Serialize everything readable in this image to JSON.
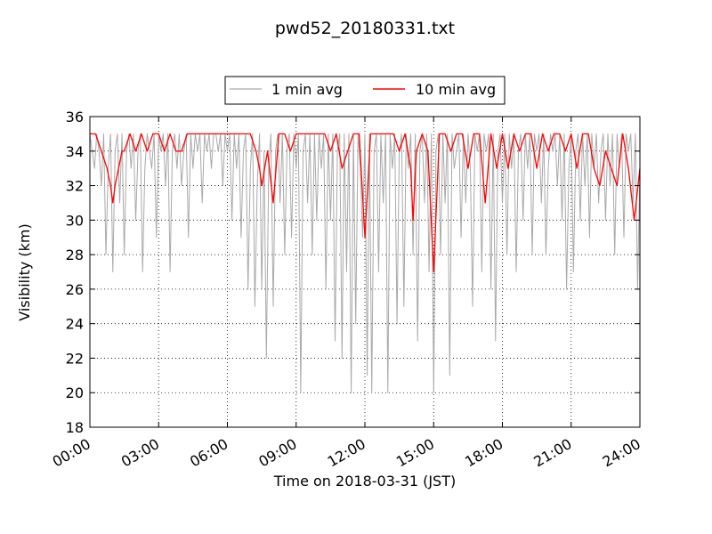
{
  "chart_data": {
    "type": "line",
    "title": "pwd52_20180331.txt",
    "xlabel": "Time on 2018-03-31 (JST)",
    "ylabel": "Visibility (km)",
    "xlim": [
      0,
      24
    ],
    "ylim": [
      18,
      36
    ],
    "x_tick_labels": [
      "00:00",
      "03:00",
      "06:00",
      "09:00",
      "12:00",
      "15:00",
      "18:00",
      "21:00",
      "24:00"
    ],
    "y_tick_labels": [
      "18",
      "20",
      "22",
      "24",
      "26",
      "28",
      "30",
      "32",
      "34",
      "36"
    ],
    "grid": true,
    "legend_position": "top-center",
    "series": [
      {
        "name": "1 min avg",
        "color": "#a9a9a9",
        "x": [
          0.0,
          0.1,
          0.2,
          0.3,
          0.4,
          0.5,
          0.6,
          0.7,
          0.8,
          0.9,
          1.0,
          1.1,
          1.2,
          1.3,
          1.4,
          1.5,
          1.6,
          1.7,
          1.8,
          1.9,
          2.0,
          2.1,
          2.2,
          2.3,
          2.4,
          2.5,
          2.6,
          2.7,
          2.8,
          2.9,
          3.0,
          3.1,
          3.2,
          3.3,
          3.4,
          3.5,
          3.6,
          3.7,
          3.8,
          3.9,
          4.0,
          4.1,
          4.2,
          4.3,
          4.4,
          4.5,
          4.6,
          4.7,
          4.8,
          4.9,
          5.0,
          5.1,
          5.2,
          5.3,
          5.4,
          5.5,
          5.6,
          5.7,
          5.8,
          5.9,
          6.0,
          6.1,
          6.2,
          6.3,
          6.4,
          6.5,
          6.6,
          6.7,
          6.8,
          6.9,
          7.0,
          7.1,
          7.2,
          7.3,
          7.4,
          7.5,
          7.6,
          7.7,
          7.8,
          7.9,
          8.0,
          8.1,
          8.2,
          8.3,
          8.4,
          8.5,
          8.6,
          8.7,
          8.8,
          8.9,
          9.0,
          9.1,
          9.2,
          9.3,
          9.4,
          9.5,
          9.6,
          9.7,
          9.8,
          9.9,
          10.0,
          10.1,
          10.2,
          10.3,
          10.4,
          10.5,
          10.6,
          10.7,
          10.8,
          10.9,
          11.0,
          11.1,
          11.2,
          11.3,
          11.4,
          11.5,
          11.6,
          11.7,
          11.8,
          11.9,
          12.0,
          12.1,
          12.2,
          12.3,
          12.4,
          12.5,
          12.6,
          12.7,
          12.8,
          12.9,
          13.0,
          13.1,
          13.2,
          13.3,
          13.4,
          13.5,
          13.6,
          13.7,
          13.8,
          13.9,
          14.0,
          14.1,
          14.2,
          14.3,
          14.4,
          14.5,
          14.6,
          14.7,
          14.8,
          14.9,
          15.0,
          15.1,
          15.2,
          15.3,
          15.4,
          15.5,
          15.6,
          15.7,
          15.8,
          15.9,
          16.0,
          16.1,
          16.2,
          16.3,
          16.4,
          16.5,
          16.6,
          16.7,
          16.8,
          16.9,
          17.0,
          17.1,
          17.2,
          17.3,
          17.4,
          17.5,
          17.6,
          17.7,
          17.8,
          17.9,
          18.0,
          18.1,
          18.2,
          18.3,
          18.4,
          18.5,
          18.6,
          18.7,
          18.8,
          18.9,
          19.0,
          19.1,
          19.2,
          19.3,
          19.4,
          19.5,
          19.6,
          19.7,
          19.8,
          19.9,
          20.0,
          20.1,
          20.2,
          20.3,
          20.4,
          20.5,
          20.6,
          20.7,
          20.8,
          20.9,
          21.0,
          21.1,
          21.2,
          21.3,
          21.4,
          21.5,
          21.6,
          21.7,
          21.8,
          21.9,
          22.0,
          22.1,
          22.2,
          22.3,
          22.4,
          22.5,
          22.6,
          22.7,
          22.8,
          22.9,
          23.0,
          23.1,
          23.2,
          23.3,
          23.4,
          23.5,
          23.6,
          23.7,
          23.8,
          23.9,
          24.0
        ],
        "values": [
          35,
          34,
          33,
          35,
          34,
          32,
          35,
          28,
          33,
          35,
          27,
          34,
          35,
          31,
          35,
          28,
          34,
          35,
          33,
          35,
          30,
          34,
          35,
          27,
          33,
          35,
          34,
          33,
          35,
          29,
          35,
          34,
          35,
          32,
          35,
          27,
          34,
          35,
          33,
          35,
          32,
          34,
          35,
          29,
          35,
          33,
          35,
          34,
          35,
          31,
          35,
          34,
          35,
          33,
          35,
          35,
          34,
          35,
          32,
          35,
          34,
          35,
          30,
          35,
          33,
          35,
          29,
          34,
          35,
          26,
          33,
          35,
          25,
          32,
          35,
          26,
          34,
          22,
          33,
          35,
          25,
          34,
          35,
          31,
          35,
          28,
          34,
          35,
          29,
          35,
          33,
          35,
          20,
          34,
          35,
          31,
          35,
          28,
          35,
          30,
          35,
          33,
          35,
          26,
          35,
          30,
          35,
          23,
          34,
          35,
          22,
          35,
          27,
          35,
          20,
          35,
          24,
          35,
          33,
          29,
          35,
          21,
          35,
          20,
          34,
          35,
          27,
          35,
          31,
          35,
          20,
          35,
          33,
          35,
          24,
          34,
          35,
          25,
          35,
          33,
          35,
          28,
          35,
          23,
          34,
          35,
          31,
          35,
          27,
          35,
          20,
          34,
          35,
          28,
          35,
          31,
          35,
          21,
          35,
          33,
          34,
          35,
          29,
          35,
          31,
          35,
          33,
          25,
          35,
          34,
          35,
          27,
          35,
          34,
          35,
          26,
          35,
          23,
          34,
          35,
          31,
          35,
          28,
          35,
          33,
          35,
          27,
          34,
          35,
          30,
          35,
          33,
          35,
          28,
          35,
          34,
          35,
          31,
          35,
          28,
          33,
          35,
          34,
          35,
          32,
          35,
          30,
          35,
          26,
          33,
          35,
          27,
          34,
          35,
          30,
          35,
          32,
          35,
          29,
          35,
          33,
          35,
          31,
          34,
          35,
          30,
          35,
          32,
          35,
          28,
          35,
          33,
          35,
          29,
          35,
          34,
          35,
          31,
          35,
          26,
          33
        ]
      },
      {
        "name": "10 min avg",
        "color": "#ff0000",
        "x": [
          0.0,
          0.25,
          0.5,
          0.75,
          0.9,
          1.0,
          1.1,
          1.25,
          1.4,
          1.5,
          1.75,
          2.0,
          2.25,
          2.5,
          2.75,
          3.0,
          3.25,
          3.5,
          3.75,
          4.0,
          4.25,
          4.5,
          4.75,
          5.0,
          5.5,
          6.0,
          6.5,
          7.0,
          7.25,
          7.4,
          7.5,
          7.75,
          8.0,
          8.25,
          8.5,
          8.75,
          9.0,
          9.5,
          10.0,
          10.25,
          10.5,
          10.75,
          11.0,
          11.25,
          11.5,
          11.75,
          12.0,
          12.25,
          12.5,
          12.75,
          13.0,
          13.25,
          13.5,
          13.75,
          14.0,
          14.1,
          14.25,
          14.5,
          14.75,
          15.0,
          15.25,
          15.5,
          15.75,
          16.0,
          16.25,
          16.5,
          16.75,
          17.0,
          17.25,
          17.5,
          17.75,
          18.0,
          18.25,
          18.5,
          18.75,
          19.0,
          19.25,
          19.5,
          19.75,
          20.0,
          20.25,
          20.5,
          20.75,
          21.0,
          21.25,
          21.5,
          21.75,
          22.0,
          22.25,
          22.5,
          22.75,
          23.0,
          23.25,
          23.5,
          23.75,
          24.0
        ],
        "values": [
          35,
          35,
          34,
          33,
          32,
          31,
          32,
          33,
          34,
          34,
          35,
          34,
          35,
          34,
          35,
          35,
          34,
          35,
          34,
          34,
          35,
          35,
          35,
          35,
          35,
          35,
          35,
          35,
          34,
          33,
          32,
          34,
          31,
          35,
          35,
          34,
          35,
          35,
          35,
          35,
          34,
          35,
          33,
          34,
          35,
          35,
          29,
          35,
          35,
          35,
          35,
          35,
          34,
          35,
          33,
          30,
          34,
          35,
          34,
          27,
          35,
          35,
          34,
          35,
          35,
          33,
          35,
          35,
          31,
          35,
          33,
          35,
          33,
          35,
          34,
          35,
          35,
          33,
          35,
          34,
          35,
          35,
          34,
          35,
          33,
          35,
          35,
          33,
          32,
          34,
          33,
          32,
          35,
          33,
          30,
          33
        ]
      }
    ]
  }
}
